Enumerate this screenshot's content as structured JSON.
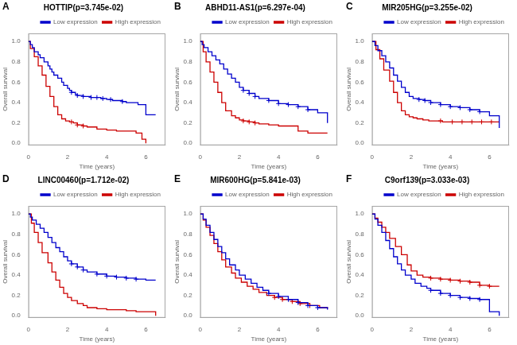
{
  "chart_data": [
    {
      "type": "line",
      "line_style": "step",
      "panel_label": "A",
      "title": "HOTTIP(p=3.745e-02)",
      "x_label": "Time (years)",
      "y_label": "Overall survival",
      "xlim": [
        0,
        7
      ],
      "ylim": [
        -0.02,
        1.08
      ],
      "xticks": [
        0,
        2,
        4,
        6
      ],
      "yticks": [
        {
          "value": 0.0,
          "label": "0.0"
        },
        0.2,
        0.4,
        0.6,
        0.8,
        {
          "value": 1.0,
          "label": "1.0"
        }
      ],
      "grid": false,
      "legend": "upper right",
      "series": [
        {
          "name": "Low expression",
          "color": "#0000cc",
          "x": [
            0,
            0.1,
            0.2,
            0.3,
            0.5,
            0.6,
            0.8,
            1.0,
            1.1,
            1.2,
            1.3,
            1.5,
            1.7,
            1.8,
            2.0,
            2.1,
            2.2,
            2.4,
            2.5,
            2.8,
            3.0,
            3.2,
            3.5,
            3.7,
            4.0,
            4.3,
            4.5,
            4.8,
            5.0,
            5.6,
            6.0,
            6.5
          ],
          "values": [
            1.0,
            0.97,
            0.94,
            0.9,
            0.87,
            0.84,
            0.8,
            0.76,
            0.73,
            0.7,
            0.67,
            0.64,
            0.6,
            0.57,
            0.54,
            0.52,
            0.5,
            0.48,
            0.47,
            0.46,
            0.46,
            0.45,
            0.45,
            0.44,
            0.43,
            0.42,
            0.42,
            0.41,
            0.4,
            0.38,
            0.28,
            0.28
          ],
          "censor_x": [
            2.2,
            2.5,
            2.8,
            3.2,
            3.5,
            3.8,
            4.2,
            4.8
          ],
          "censor_y": [
            0.5,
            0.47,
            0.46,
            0.45,
            0.45,
            0.44,
            0.43,
            0.41
          ]
        },
        {
          "name": "High expression",
          "color": "#cc0000",
          "x": [
            0,
            0.1,
            0.3,
            0.5,
            0.7,
            0.9,
            1.1,
            1.3,
            1.5,
            1.7,
            1.9,
            2.1,
            2.3,
            2.5,
            2.8,
            3.0,
            3.5,
            4.0,
            4.5,
            5.0,
            5.5,
            5.8,
            6.0
          ],
          "values": [
            1.0,
            0.93,
            0.85,
            0.76,
            0.67,
            0.56,
            0.46,
            0.36,
            0.28,
            0.24,
            0.22,
            0.21,
            0.2,
            0.18,
            0.17,
            0.16,
            0.14,
            0.13,
            0.12,
            0.12,
            0.1,
            0.04,
            0.0
          ],
          "censor_x": [
            2.2,
            2.5,
            2.8
          ],
          "censor_y": [
            0.21,
            0.18,
            0.17
          ]
        }
      ]
    },
    {
      "type": "line",
      "line_style": "step",
      "panel_label": "B",
      "title": "ABHD11-AS1(p=6.297e-04)",
      "x_label": "Time (years)",
      "y_label": "Overall survival",
      "xlim": [
        0,
        7
      ],
      "ylim": [
        -0.02,
        1.08
      ],
      "xticks": [
        0,
        2,
        4,
        6
      ],
      "yticks": [
        {
          "value": 0.0,
          "label": "0.0"
        },
        0.2,
        0.4,
        0.6,
        0.8,
        {
          "value": 1.0,
          "label": "1.0"
        }
      ],
      "grid": false,
      "legend": "upper right",
      "series": [
        {
          "name": "Low expression",
          "color": "#0000cc",
          "x": [
            0,
            0.1,
            0.2,
            0.4,
            0.6,
            0.8,
            1.0,
            1.2,
            1.4,
            1.6,
            1.8,
            2.0,
            2.2,
            2.5,
            2.8,
            3.0,
            3.5,
            4.0,
            4.5,
            5.0,
            5.5,
            6.0,
            6.5
          ],
          "values": [
            1.0,
            0.97,
            0.94,
            0.9,
            0.86,
            0.82,
            0.78,
            0.73,
            0.68,
            0.64,
            0.6,
            0.55,
            0.52,
            0.49,
            0.46,
            0.44,
            0.42,
            0.39,
            0.38,
            0.36,
            0.33,
            0.3,
            0.2
          ],
          "censor_x": [
            2.2,
            2.5,
            2.8,
            3.5,
            4.0,
            4.5,
            5.0,
            5.5
          ],
          "censor_y": [
            0.52,
            0.49,
            0.46,
            0.42,
            0.39,
            0.38,
            0.36,
            0.33
          ]
        },
        {
          "name": "High expression",
          "color": "#cc0000",
          "x": [
            0,
            0.15,
            0.3,
            0.5,
            0.7,
            0.9,
            1.1,
            1.3,
            1.6,
            1.8,
            2.0,
            2.2,
            2.5,
            2.8,
            3.0,
            3.5,
            4.0,
            5.0,
            5.5,
            6.0,
            6.5
          ],
          "values": [
            1.0,
            0.9,
            0.8,
            0.7,
            0.6,
            0.5,
            0.4,
            0.32,
            0.27,
            0.25,
            0.23,
            0.22,
            0.21,
            0.2,
            0.19,
            0.18,
            0.17,
            0.12,
            0.1,
            0.1,
            0.1
          ],
          "censor_x": [
            2.2,
            2.5,
            2.8
          ],
          "censor_y": [
            0.22,
            0.21,
            0.2
          ]
        }
      ]
    },
    {
      "type": "line",
      "line_style": "step",
      "panel_label": "C",
      "title": "MIR205HG(p=3.255e-02)",
      "x_label": "Time (years)",
      "y_label": "Overall survival",
      "xlim": [
        0,
        7
      ],
      "ylim": [
        -0.02,
        1.08
      ],
      "xticks": [
        0,
        2,
        4,
        6
      ],
      "yticks": [
        {
          "value": 0.0,
          "label": "0.0"
        },
        0.2,
        0.4,
        0.6,
        0.8,
        {
          "value": 1.0,
          "label": "1.0"
        }
      ],
      "grid": false,
      "legend": "upper right",
      "series": [
        {
          "name": "Low expression",
          "color": "#0000cc",
          "x": [
            0,
            0.15,
            0.3,
            0.5,
            0.7,
            0.9,
            1.1,
            1.3,
            1.5,
            1.7,
            1.9,
            2.1,
            2.4,
            2.7,
            3.0,
            3.5,
            4.0,
            4.5,
            5.0,
            5.5,
            6.0,
            6.5
          ],
          "values": [
            1.0,
            0.96,
            0.91,
            0.86,
            0.8,
            0.74,
            0.67,
            0.61,
            0.55,
            0.5,
            0.46,
            0.44,
            0.43,
            0.42,
            0.4,
            0.38,
            0.36,
            0.35,
            0.33,
            0.31,
            0.27,
            0.15
          ],
          "censor_x": [
            2.4,
            2.7,
            3.0,
            3.5,
            4.0,
            4.5,
            5.0,
            5.5
          ],
          "censor_y": [
            0.43,
            0.42,
            0.4,
            0.38,
            0.36,
            0.35,
            0.33,
            0.31
          ]
        },
        {
          "name": "High expression",
          "color": "#cc0000",
          "x": [
            0,
            0.2,
            0.4,
            0.6,
            0.9,
            1.1,
            1.3,
            1.5,
            1.7,
            1.9,
            2.1,
            2.3,
            2.6,
            2.9,
            3.2,
            3.6,
            4.1,
            4.6,
            5.1,
            5.6,
            6.1,
            6.5
          ],
          "values": [
            1.0,
            0.92,
            0.83,
            0.72,
            0.61,
            0.5,
            0.4,
            0.32,
            0.28,
            0.26,
            0.25,
            0.24,
            0.23,
            0.22,
            0.22,
            0.21,
            0.21,
            0.21,
            0.21,
            0.21,
            0.21,
            0.21
          ],
          "censor_x": [
            3.5,
            4.1,
            4.6,
            5.1,
            5.6,
            6.1
          ],
          "censor_y": [
            0.22,
            0.21,
            0.21,
            0.21,
            0.21,
            0.21
          ]
        }
      ]
    },
    {
      "type": "line",
      "line_style": "step",
      "panel_label": "D",
      "title": "LINC00460(p=1.712e-02)",
      "x_label": "Time (years)",
      "y_label": "Overall survival",
      "xlim": [
        0,
        7
      ],
      "ylim": [
        -0.02,
        1.08
      ],
      "xticks": [
        0,
        2,
        4,
        6
      ],
      "yticks": [
        {
          "value": 0.0,
          "label": "0.0"
        },
        0.2,
        0.4,
        0.6,
        0.8,
        {
          "value": 1.0,
          "label": "1.0"
        }
      ],
      "grid": false,
      "legend": "upper right",
      "series": [
        {
          "name": "Low expression",
          "color": "#0000cc",
          "x": [
            0,
            0.1,
            0.2,
            0.4,
            0.6,
            0.8,
            1.0,
            1.2,
            1.4,
            1.6,
            1.8,
            2.0,
            2.2,
            2.5,
            2.8,
            3.0,
            3.5,
            4.0,
            4.5,
            5.0,
            5.5,
            6.0,
            6.5
          ],
          "values": [
            1.0,
            0.97,
            0.94,
            0.9,
            0.86,
            0.82,
            0.77,
            0.72,
            0.67,
            0.63,
            0.58,
            0.54,
            0.51,
            0.48,
            0.45,
            0.43,
            0.41,
            0.39,
            0.38,
            0.37,
            0.36,
            0.35,
            0.35
          ],
          "censor_x": [
            2.2,
            2.5,
            2.8,
            3.5,
            4.0,
            4.5,
            5.0,
            5.5
          ],
          "censor_y": [
            0.51,
            0.48,
            0.45,
            0.41,
            0.39,
            0.38,
            0.37,
            0.36
          ]
        },
        {
          "name": "High expression",
          "color": "#cc0000",
          "x": [
            0,
            0.15,
            0.3,
            0.5,
            0.7,
            1.0,
            1.2,
            1.4,
            1.6,
            1.8,
            2.0,
            2.2,
            2.5,
            2.8,
            3.0,
            3.5,
            4.0,
            5.0,
            5.5,
            6.5
          ],
          "values": [
            1.0,
            0.91,
            0.82,
            0.72,
            0.62,
            0.52,
            0.43,
            0.35,
            0.28,
            0.22,
            0.18,
            0.15,
            0.12,
            0.1,
            0.08,
            0.07,
            0.06,
            0.05,
            0.04,
            0.0
          ],
          "censor_x": [],
          "censor_y": []
        }
      ]
    },
    {
      "type": "line",
      "line_style": "step",
      "panel_label": "E",
      "title": "MIR600HG(p=5.841e-03)",
      "x_label": "Time (years)",
      "y_label": "Overall survival",
      "xlim": [
        0,
        7
      ],
      "ylim": [
        -0.02,
        1.08
      ],
      "xticks": [
        0,
        2,
        4,
        6
      ],
      "yticks": [
        {
          "value": 0.0,
          "label": "0.0"
        },
        0.2,
        0.4,
        0.6,
        0.8,
        {
          "value": 1.0,
          "label": "1.0"
        }
      ],
      "grid": false,
      "legend": "upper right",
      "series": [
        {
          "name": "Low expression",
          "color": "#0000cc",
          "x": [
            0,
            0.15,
            0.3,
            0.5,
            0.7,
            0.9,
            1.1,
            1.3,
            1.5,
            1.8,
            2.0,
            2.3,
            2.6,
            2.9,
            3.2,
            3.5,
            4.0,
            4.5,
            5.0,
            5.5,
            6.0,
            6.5
          ],
          "values": [
            1.0,
            0.95,
            0.89,
            0.82,
            0.75,
            0.68,
            0.62,
            0.56,
            0.5,
            0.45,
            0.4,
            0.36,
            0.32,
            0.28,
            0.25,
            0.22,
            0.19,
            0.16,
            0.13,
            0.1,
            0.08,
            0.06
          ],
          "censor_x": [
            3.5,
            4.0,
            4.5,
            5.0,
            5.5,
            6.0
          ],
          "censor_y": [
            0.22,
            0.19,
            0.16,
            0.13,
            0.1,
            0.08
          ]
        },
        {
          "name": "High expression",
          "color": "#cc0000",
          "x": [
            0,
            0.15,
            0.3,
            0.5,
            0.7,
            0.9,
            1.1,
            1.3,
            1.6,
            1.8,
            2.1,
            2.4,
            2.7,
            3.0,
            3.4,
            3.8,
            4.2,
            4.7,
            5.1,
            5.6,
            6.1,
            6.5
          ],
          "values": [
            1.0,
            0.94,
            0.87,
            0.79,
            0.71,
            0.63,
            0.55,
            0.48,
            0.42,
            0.37,
            0.33,
            0.29,
            0.26,
            0.23,
            0.2,
            0.18,
            0.16,
            0.14,
            0.12,
            0.1,
            0.08,
            0.07
          ],
          "censor_x": [
            3.8,
            4.2,
            4.7,
            5.1,
            5.6
          ],
          "censor_y": [
            0.18,
            0.16,
            0.14,
            0.12,
            0.1
          ]
        }
      ]
    },
    {
      "type": "line",
      "line_style": "step",
      "panel_label": "F",
      "title": "C9orf139(p=3.033e-03)",
      "x_label": "Time (years)",
      "y_label": "Overall survival",
      "xlim": [
        0,
        7
      ],
      "ylim": [
        -0.02,
        1.08
      ],
      "xticks": [
        0,
        2,
        4,
        6
      ],
      "yticks": [
        {
          "value": 0.0,
          "label": "0.0"
        },
        0.2,
        0.4,
        0.6,
        0.8,
        {
          "value": 1.0,
          "label": "1.0"
        }
      ],
      "grid": false,
      "legend": "upper right",
      "series": [
        {
          "name": "Low expression",
          "color": "#0000cc",
          "x": [
            0,
            0.15,
            0.3,
            0.5,
            0.7,
            0.9,
            1.1,
            1.3,
            1.5,
            1.7,
            2.0,
            2.2,
            2.5,
            2.8,
            3.0,
            3.5,
            4.0,
            4.5,
            5.0,
            5.5,
            6.0,
            6.5
          ],
          "values": [
            1.0,
            0.95,
            0.89,
            0.82,
            0.74,
            0.66,
            0.58,
            0.51,
            0.45,
            0.4,
            0.36,
            0.32,
            0.29,
            0.27,
            0.25,
            0.22,
            0.2,
            0.18,
            0.17,
            0.16,
            0.04,
            0.0
          ],
          "censor_x": [
            3.0,
            3.5,
            4.0,
            4.5,
            5.0,
            5.5
          ],
          "censor_y": [
            0.25,
            0.22,
            0.2,
            0.18,
            0.17,
            0.16
          ]
        },
        {
          "name": "High expression",
          "color": "#cc0000",
          "x": [
            0,
            0.15,
            0.3,
            0.5,
            0.7,
            0.9,
            1.2,
            1.5,
            1.8,
            2.0,
            2.3,
            2.6,
            3.0,
            3.5,
            4.0,
            4.5,
            5.0,
            5.5,
            6.0,
            6.5
          ],
          "values": [
            1.0,
            0.96,
            0.92,
            0.87,
            0.82,
            0.76,
            0.68,
            0.6,
            0.5,
            0.44,
            0.4,
            0.38,
            0.37,
            0.36,
            0.35,
            0.34,
            0.33,
            0.3,
            0.29,
            0.29
          ],
          "censor_x": [
            3.0,
            3.5,
            4.0,
            4.5,
            5.0,
            5.5,
            6.0
          ],
          "censor_y": [
            0.37,
            0.36,
            0.35,
            0.34,
            0.33,
            0.3,
            0.29
          ]
        }
      ]
    }
  ]
}
